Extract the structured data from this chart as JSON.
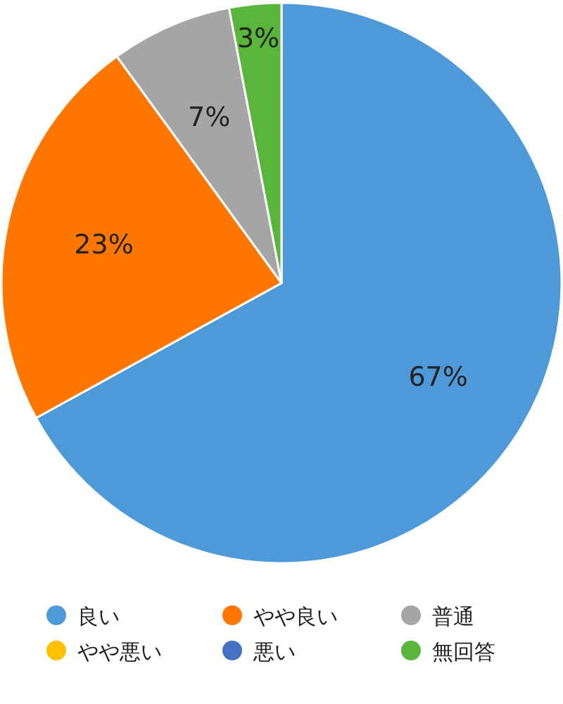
{
  "chart_data": {
    "type": "pie",
    "categories": [
      "良い",
      "やや良い",
      "普通",
      "やや悪い",
      "悪い",
      "無回答"
    ],
    "values": [
      67,
      23,
      7,
      0,
      0,
      3
    ],
    "colors": [
      "#4e9ad9",
      "#ff7700",
      "#a5a5a5",
      "#ffc000",
      "#4472c4",
      "#5ab53b"
    ],
    "value_labels": [
      "67%",
      "23%",
      "7%",
      null,
      null,
      "3%"
    ],
    "legend": "bottom"
  }
}
